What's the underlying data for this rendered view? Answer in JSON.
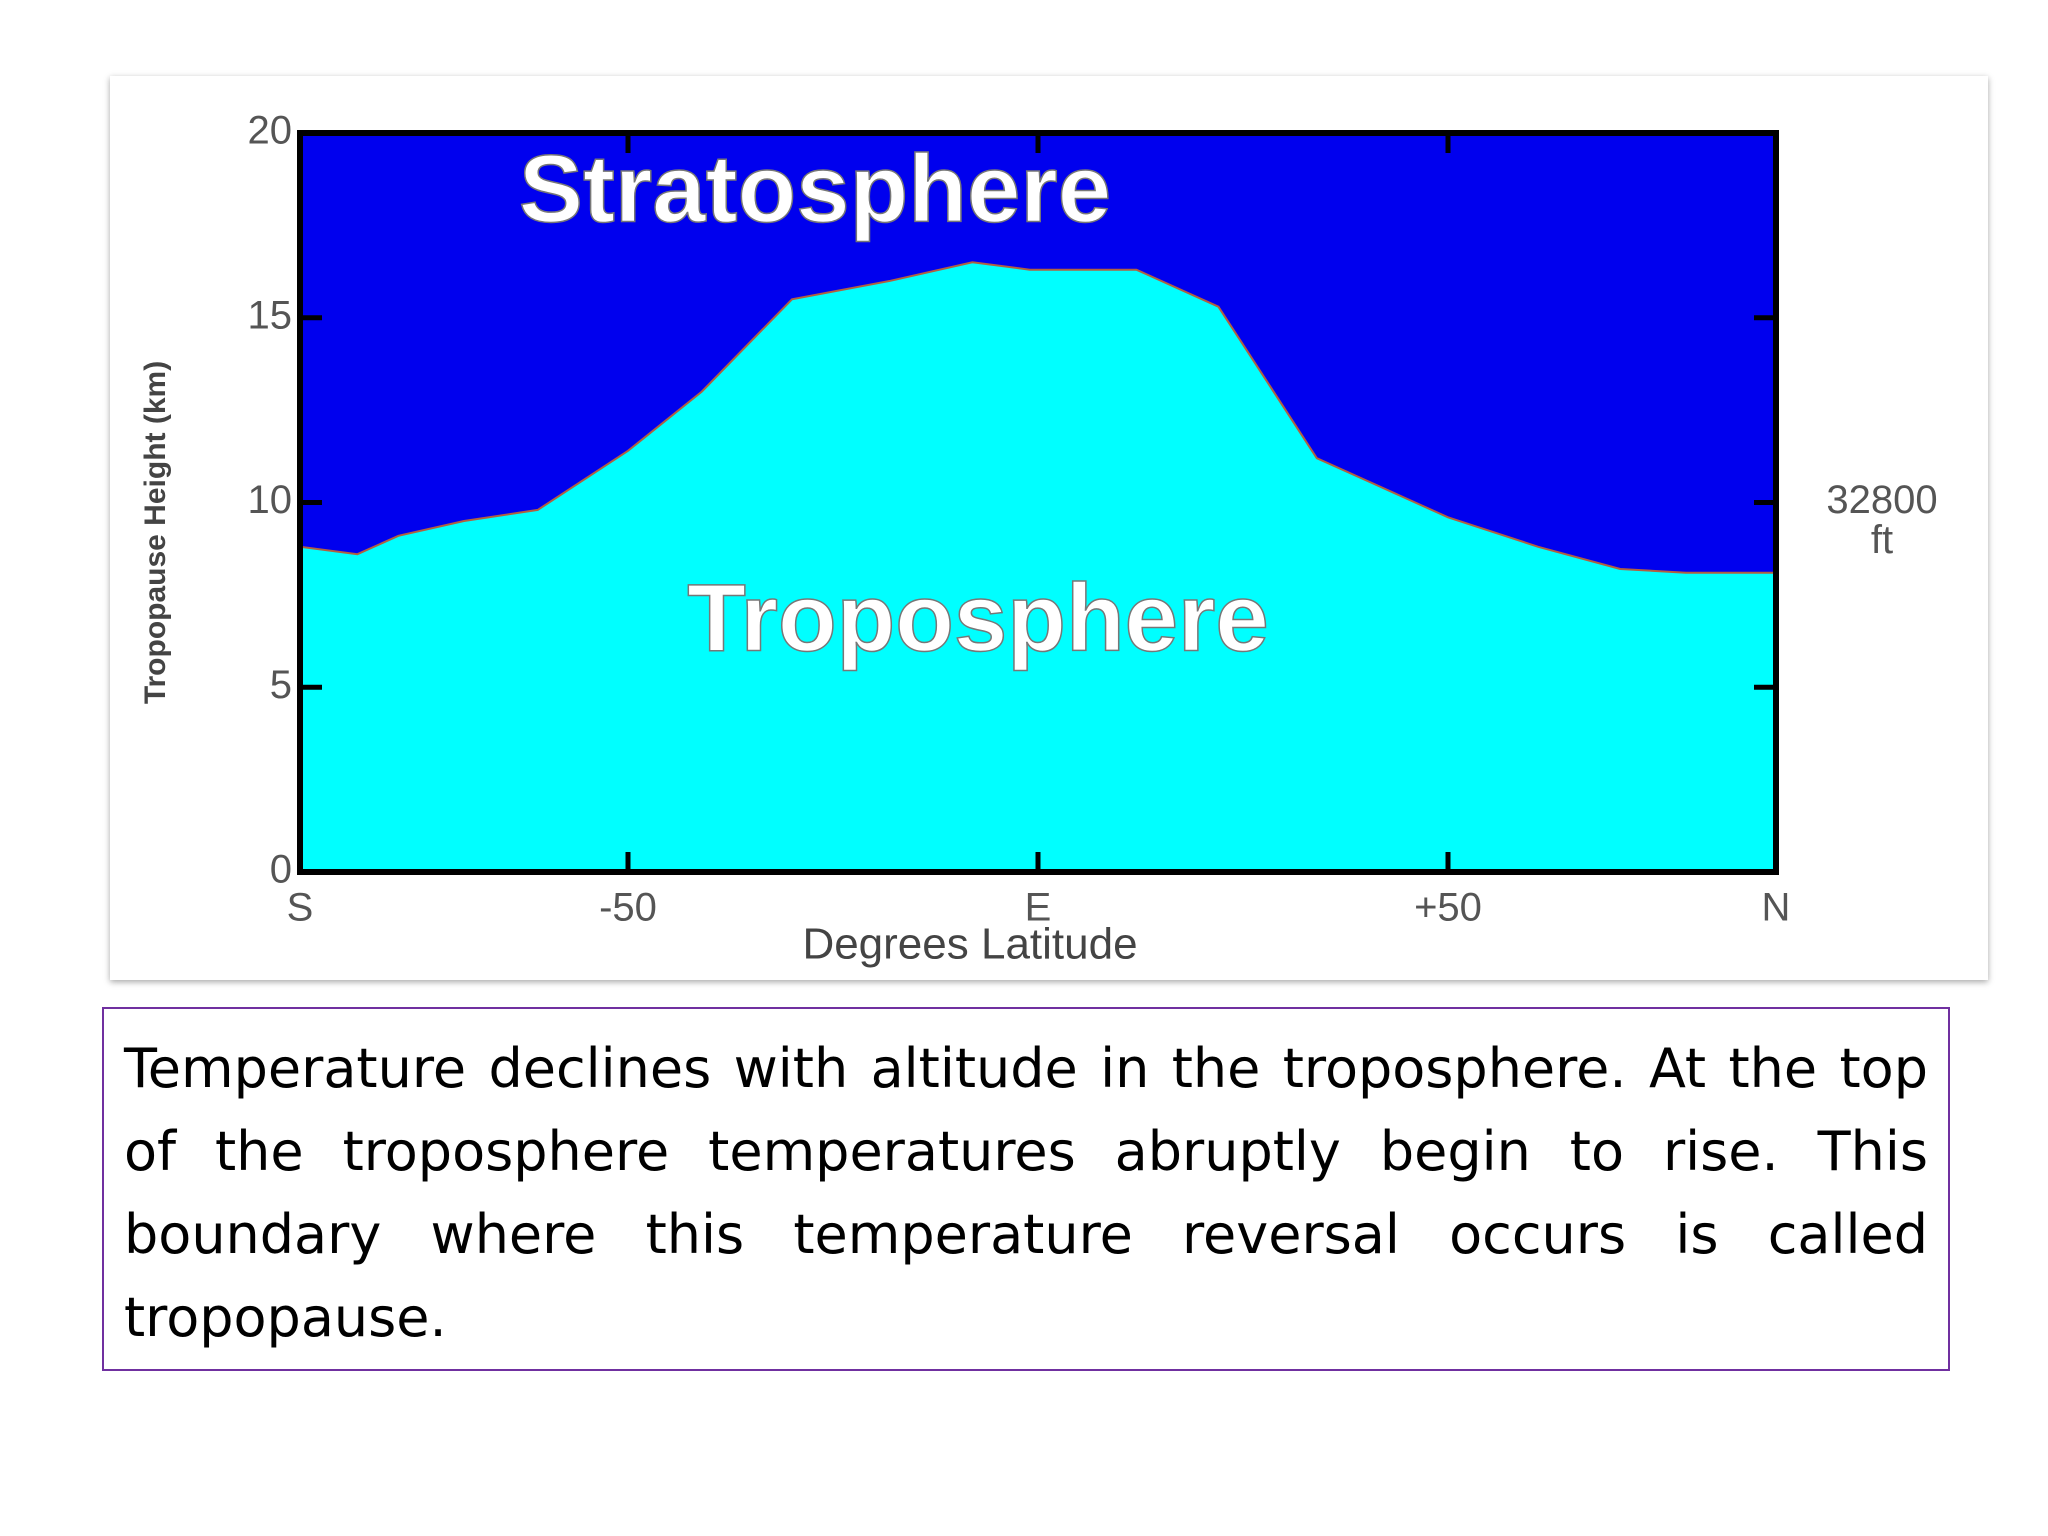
{
  "chart_data": {
    "type": "area",
    "title_labels": {
      "upper": "Stratosphere",
      "lower": "Troposphere"
    },
    "xlabel": "Degrees Latitude",
    "ylabel": "Tropopause Height (km)",
    "x": [
      -90,
      -83,
      -78,
      -70,
      -61,
      -50,
      -41,
      -30,
      -18,
      -8,
      -1,
      12,
      22,
      34,
      41,
      50,
      61,
      71,
      79,
      90
    ],
    "values": [
      8.8,
      8.6,
      9.1,
      9.5,
      9.8,
      11.4,
      13.0,
      15.5,
      16.0,
      16.5,
      16.3,
      16.3,
      15.3,
      11.2,
      10.5,
      9.6,
      8.8,
      8.2,
      8.1,
      8.1
    ],
    "color": "#00ffff",
    "background_color": "#0000ee",
    "xlim": [
      -90,
      90
    ],
    "xticks": [
      {
        "value": -90,
        "label": "S"
      },
      -50,
      {
        "value": 0,
        "label": "E"
      },
      {
        "value": 50,
        "label": "+50"
      },
      {
        "value": 90,
        "label": "N"
      }
    ],
    "ylim": [
      0,
      20
    ],
    "yticks": [
      0,
      5,
      10,
      15,
      20
    ],
    "right_annotation": {
      "value": 10,
      "lines": [
        "32800",
        "ft"
      ]
    }
  },
  "caption": "Temperature declines with altitude in the troposphere. At the top of the troposphere temperatures abruptly begin to rise. This boundary where this temperature reversal occurs is called tropopause."
}
